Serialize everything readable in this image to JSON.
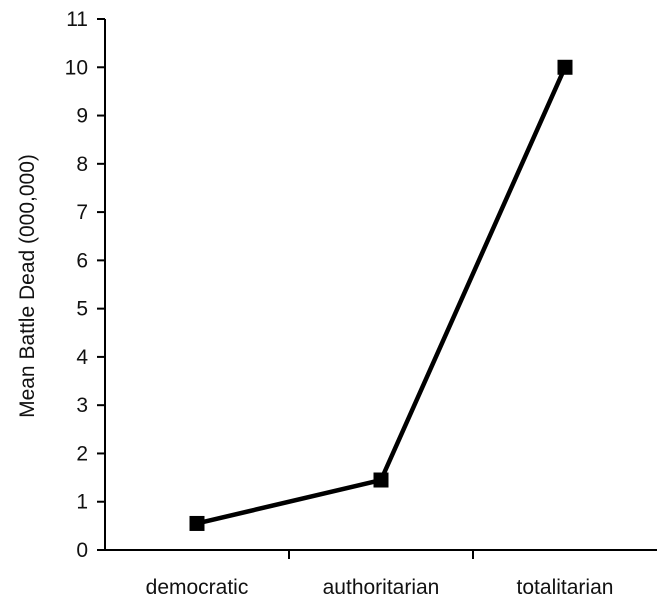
{
  "chart_data": {
    "type": "line",
    "title": "",
    "xlabel": "",
    "ylabel": "Mean Battle Dead (000,000)",
    "categories": [
      "democratic",
      "authoritarian",
      "totalitarian"
    ],
    "series": [
      {
        "values": [
          0.55,
          1.45,
          10.0
        ]
      }
    ],
    "ylim": [
      0,
      11
    ],
    "yticks": [
      0,
      1,
      2,
      3,
      4,
      5,
      6,
      7,
      8,
      9,
      10,
      11
    ],
    "ytick_labels": [
      "0",
      "1",
      "2",
      "3",
      "4",
      "5",
      "6",
      "7",
      "8",
      "9",
      "10",
      "11"
    ],
    "grid": false,
    "legend": "none",
    "marker": "square",
    "line_color": "#000000"
  }
}
